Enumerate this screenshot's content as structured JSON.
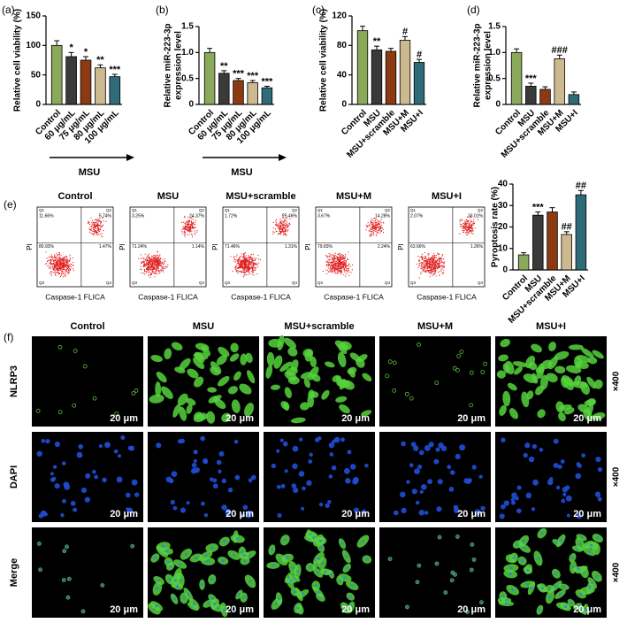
{
  "chart_data": [
    {
      "type": "bar",
      "panel": "(a)",
      "ylabel": [
        "Relative cell viability (%)"
      ],
      "categories": [
        "Control",
        "60 μg/mL",
        "75 μg/mL",
        "80 μg/mL",
        "100 μg/mL"
      ],
      "values": [
        100,
        81,
        75,
        62,
        47
      ],
      "errors": [
        8,
        7,
        6,
        5,
        4
      ],
      "annotations": [
        null,
        "*",
        "*",
        "**",
        "***"
      ],
      "colors": [
        "#8aa95a",
        "#3a3a3a",
        "#8b3a12",
        "#cdb98f",
        "#2f6c78"
      ],
      "ylim": [
        0,
        150
      ],
      "yticks": [
        0,
        50,
        100,
        150
      ],
      "group_label": "MSU"
    },
    {
      "type": "bar",
      "panel": "(b)",
      "ylabel": [
        "Relative miR-223-3p",
        "expression level"
      ],
      "categories": [
        "Control",
        "60 μg/mL",
        "75 μg/mL",
        "80 μg/mL",
        "100 μg/mL"
      ],
      "values": [
        1.0,
        0.6,
        0.46,
        0.42,
        0.32
      ],
      "errors": [
        0.08,
        0.05,
        0.04,
        0.04,
        0.03
      ],
      "annotations": [
        null,
        "**",
        "***",
        "***",
        "***"
      ],
      "colors": [
        "#8aa95a",
        "#3a3a3a",
        "#8b3a12",
        "#cdb98f",
        "#2f6c78"
      ],
      "ylim": [
        0,
        1.5
      ],
      "yticks": [
        0,
        0.5,
        {
          "value": 1,
          "label": "1.0"
        },
        1.5
      ],
      "group_label": "MSU"
    },
    {
      "type": "bar",
      "panel": "(c)",
      "ylabel": [
        "Relative cell viability (%)"
      ],
      "categories": [
        "Control",
        "MSU",
        "MSU+scramble",
        "MSU+M",
        "MSU+I"
      ],
      "values": [
        100,
        74,
        72,
        87,
        57
      ],
      "errors": [
        6,
        5,
        4,
        5,
        4
      ],
      "annotations": [
        null,
        "**",
        null,
        "#",
        "#"
      ],
      "colors": [
        "#8aa95a",
        "#3a3a3a",
        "#8b3a12",
        "#cdb98f",
        "#2f6c78"
      ],
      "ylim": [
        0,
        120
      ],
      "yticks": [
        0,
        40,
        80,
        120
      ]
    },
    {
      "type": "bar",
      "panel": "(d)",
      "ylabel": [
        "Relative miR-223-3p",
        "expression level"
      ],
      "categories": [
        "Control",
        "MSU",
        "MSU+scramble",
        "MSU+M",
        "MSU+I"
      ],
      "values": [
        1.0,
        0.35,
        0.29,
        0.88,
        0.19
      ],
      "errors": [
        0.07,
        0.06,
        0.05,
        0.07,
        0.05
      ],
      "annotations": [
        null,
        "***",
        null,
        "###",
        null
      ],
      "colors": [
        "#8aa95a",
        "#3a3a3a",
        "#8b3a12",
        "#cdb98f",
        "#2f6c78"
      ],
      "ylim": [
        0,
        1.5
      ],
      "yticks": [
        0,
        0.5,
        {
          "value": 1,
          "label": "1.0"
        },
        1.5
      ]
    },
    {
      "type": "bar",
      "ylabel": [
        "Pyroptosis rate (%)"
      ],
      "categories": [
        "Control",
        "MSU",
        "MSU+scramble",
        "MSU+M",
        "MSU+I"
      ],
      "values": [
        7,
        25.5,
        27,
        16.5,
        35
      ],
      "errors": [
        1,
        1.5,
        2,
        1.3,
        2
      ],
      "annotations": [
        null,
        "***",
        null,
        "##",
        "##"
      ],
      "colors": [
        "#8aa95a",
        "#3a3a3a",
        "#8b3a12",
        "#cdb98f",
        "#2f6c78"
      ],
      "ylim": [
        0,
        40
      ],
      "yticks": [
        0,
        10,
        20,
        30,
        40
      ]
    }
  ],
  "flow_cytometry": {
    "panel": "(e)",
    "xlabel": "Caspase-1 FLICA",
    "ylabel": "PI",
    "quadrant_names": [
      "Q1",
      "Q2",
      "Q3",
      "Q4"
    ],
    "plots": [
      {
        "title": "Control",
        "quadrants": [
          "11.66%",
          "5.74%",
          "80.93%",
          "1.47%"
        ]
      },
      {
        "title": "MSU",
        "quadrants": [
          "3.25%",
          "24.37%",
          "71.24%",
          "1.14%"
        ]
      },
      {
        "title": "MSU+scramble",
        "quadrants": [
          "1.72%",
          "25.46%",
          "71.46%",
          "1.31%"
        ]
      },
      {
        "title": "MSU+M",
        "quadrants": [
          "3.67%",
          "14.28%",
          "79.83%",
          "2.24%"
        ]
      },
      {
        "title": "MSU+I",
        "quadrants": [
          "2.07%",
          "33.01%",
          "63.66%",
          "1.26%"
        ]
      }
    ]
  },
  "fluorescence": {
    "panel": "(f)",
    "columns": [
      "Control",
      "MSU",
      "MSU+scramble",
      "MSU+M",
      "MSU+I"
    ],
    "rows": [
      "NLRP3",
      "DAPI",
      "Merge"
    ],
    "scale_bar": "20 μm",
    "magnification": "×400"
  }
}
